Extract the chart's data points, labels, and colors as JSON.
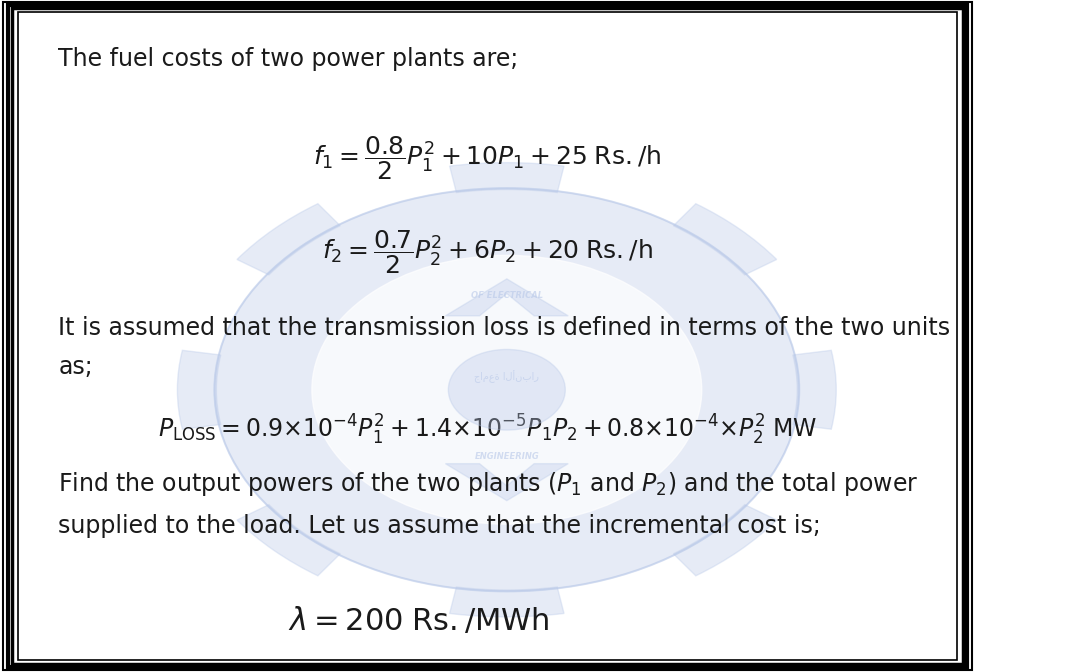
{
  "bg_color": "#ffffff",
  "border_color": "#000000",
  "text_color": "#1a1a1a",
  "title_text": "The fuel costs of two power plants are;",
  "eq1_parts": {
    "lhs": "$f_1 = \\dfrac{0.8}{2}P_1^2 + 10P_1 + 25 \\; \\mathrm{Rs./h}$"
  },
  "eq2_parts": {
    "lhs": "$f_2 = \\dfrac{0.7}{2}P_2^2 + 6P_2 + 20 \\; \\mathrm{Rs./h}$"
  },
  "mid_text": "It is assumed that the transmission loss is defined in terms of the two units\nas;",
  "loss_eq": "$P_{\\mathrm{LOSS}} = 0.9{\\times}10^{-4}P_1^2 + 1.4{\\times}10^{-5}P_1P_2 + 0.8{\\times}10^{-4}{\\times}P_2^2 \\; \\mathrm{MW}$",
  "find_text": "Find the output powers of the two plants ($P_1$ and $P_2$) and the total power\nsupplied to the load. Let us assume that the incremental cost is;",
  "lambda_eq": "$\\lambda = 200 \\; \\mathrm{Rs./MWh}$",
  "font_size_title": 17,
  "font_size_eq": 18,
  "font_size_body": 17,
  "font_size_lambda": 22
}
